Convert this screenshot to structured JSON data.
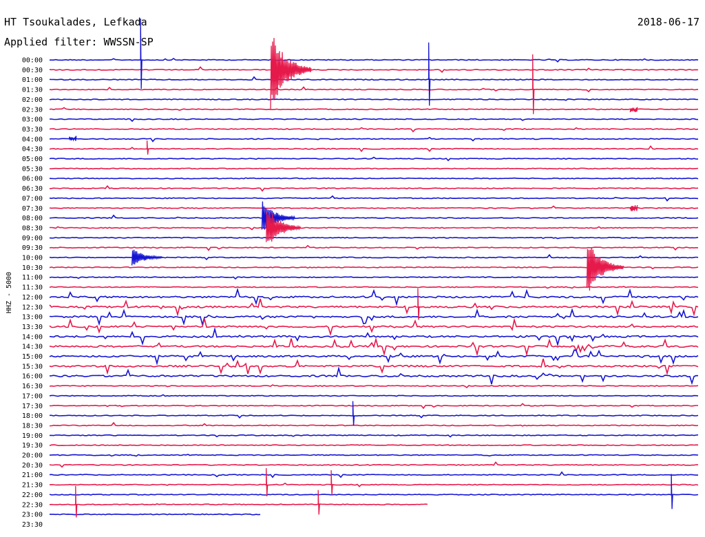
{
  "header": {
    "station": "HT Tsoukalades, Lefkada",
    "filter": "Applied filter: WWSSN-SP",
    "date": "2018-06-17"
  },
  "chart_data": {
    "type": "line",
    "title": "HT Tsoukalades, Lefkada",
    "subtitle": "Applied filter: WWSSN-SP",
    "ylabel": "HHZ - 5000",
    "colors": {
      "even_row": "#1414d2",
      "odd_row": "#e6194b"
    },
    "y_ticks": [
      "00:00",
      "00:30",
      "01:00",
      "01:30",
      "02:00",
      "02:30",
      "03:00",
      "03:30",
      "04:00",
      "04:30",
      "05:00",
      "05:30",
      "06:00",
      "06:30",
      "07:00",
      "07:30",
      "08:00",
      "08:30",
      "09:00",
      "09:30",
      "10:00",
      "10:30",
      "11:00",
      "11:30",
      "12:00",
      "12:30",
      "13:00",
      "13:30",
      "14:00",
      "14:30",
      "15:00",
      "15:30",
      "16:00",
      "16:30",
      "17:00",
      "17:30",
      "18:00",
      "18:30",
      "19:00",
      "19:30",
      "20:00",
      "20:30",
      "21:00",
      "21:30",
      "22:00",
      "22:30",
      "23:00",
      "23:30"
    ],
    "trace_extent_minutes": [
      30,
      30,
      30,
      30,
      30,
      30,
      30,
      30,
      30,
      30,
      30,
      30,
      30,
      30,
      30,
      30,
      30,
      30,
      30,
      30,
      30,
      30,
      30,
      30,
      30,
      30,
      30,
      30,
      30,
      30,
      30,
      30,
      30,
      30,
      30,
      30,
      30,
      30,
      30,
      30,
      30,
      30,
      30,
      30,
      30,
      17.5,
      9.8,
      0
    ],
    "events": [
      {
        "row": 1,
        "minute": 10.2,
        "amp": 1.0,
        "type": "quake"
      },
      {
        "row": 16,
        "minute": 9.8,
        "amp": 0.45,
        "type": "quake"
      },
      {
        "row": 17,
        "minute": 10.0,
        "amp": 0.55,
        "type": "quake"
      },
      {
        "row": 21,
        "minute": 24.8,
        "amp": 0.7,
        "type": "quake"
      },
      {
        "row": 20,
        "minute": 3.8,
        "amp": 0.25,
        "type": "quake"
      },
      {
        "row": 2,
        "minute": 17.5,
        "amp": 0.9,
        "type": "spike"
      },
      {
        "row": 3,
        "minute": 22.3,
        "amp": 0.85,
        "type": "spike"
      },
      {
        "row": 0,
        "minute": 4.2,
        "amp": 1.0,
        "type": "spike"
      },
      {
        "row": 5,
        "minute": 26.8,
        "amp": 0.3,
        "type": "burst"
      },
      {
        "row": 8,
        "minute": 0.9,
        "amp": 0.25,
        "type": "burst"
      },
      {
        "row": 9,
        "minute": 4.5,
        "amp": 0.2,
        "type": "spike"
      },
      {
        "row": 15,
        "minute": 26.8,
        "amp": 0.25,
        "type": "burst"
      },
      {
        "row": 25,
        "minute": 17.0,
        "amp": 0.45,
        "type": "spike"
      },
      {
        "row": 36,
        "minute": 14.0,
        "amp": 0.35,
        "type": "spike"
      },
      {
        "row": 43,
        "minute": 10.0,
        "amp": 0.4,
        "type": "spike"
      },
      {
        "row": 43,
        "minute": 13.0,
        "amp": 0.35,
        "type": "spike"
      },
      {
        "row": 44,
        "minute": 28.7,
        "amp": 0.5,
        "type": "spike"
      },
      {
        "row": 45,
        "minute": 1.2,
        "amp": 0.45,
        "type": "spike"
      },
      {
        "row": 45,
        "minute": 12.4,
        "amp": 0.35,
        "type": "spike"
      }
    ],
    "busy_rows": [
      24,
      25,
      26,
      27,
      28,
      29,
      30,
      31,
      32
    ],
    "grid": false
  }
}
